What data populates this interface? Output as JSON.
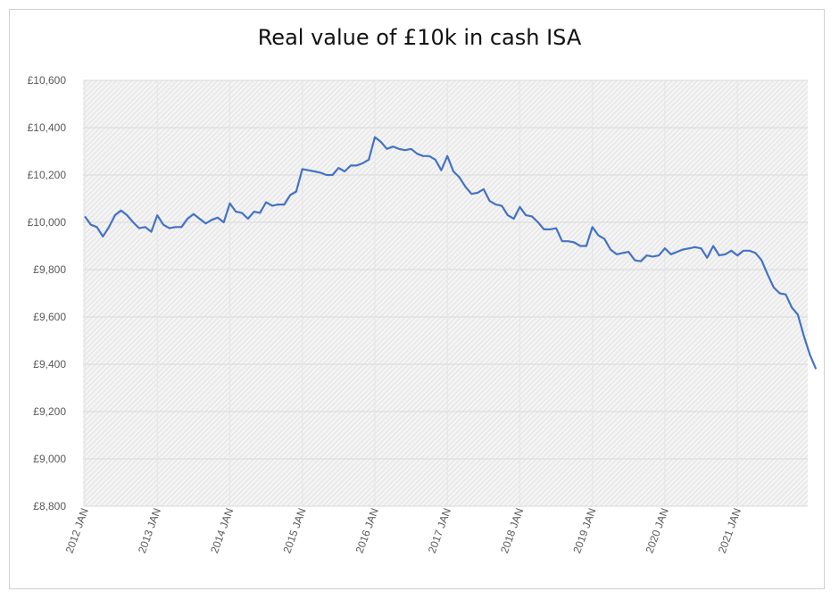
{
  "chart_data": {
    "type": "line",
    "title": "Real value of £10k in cash ISA",
    "xlabel": "",
    "ylabel": "",
    "ylim": [
      8800,
      10600
    ],
    "yticks": [
      8800,
      9000,
      9200,
      9400,
      9600,
      9800,
      10000,
      10200,
      10400,
      10600
    ],
    "ytick_labels": [
      "£8,800",
      "£9,000",
      "£9,200",
      "£9,400",
      "£9,600",
      "£9,800",
      "£10,000",
      "£10,200",
      "£10,400",
      "£10,600"
    ],
    "xtick_labels": [
      "2012 JAN",
      "2013 JAN",
      "2014 JAN",
      "2015 JAN",
      "2016 JAN",
      "2017 JAN",
      "2018 JAN",
      "2019 JAN",
      "2020 JAN",
      "2021 JAN"
    ],
    "x_start": "2012 JAN",
    "x_step": "month",
    "grid": true,
    "legend": "none",
    "series": [
      {
        "name": "Real value",
        "color": "#4472C4",
        "values": [
          10025,
          9990,
          9980,
          9940,
          9980,
          10030,
          10050,
          10030,
          10000,
          9975,
          9980,
          9960,
          10030,
          9990,
          9975,
          9980,
          9980,
          10015,
          10035,
          10015,
          9995,
          10010,
          10020,
          10000,
          10080,
          10045,
          10040,
          10015,
          10045,
          10040,
          10085,
          10070,
          10075,
          10075,
          10115,
          10130,
          10225,
          10220,
          10215,
          10210,
          10200,
          10200,
          10230,
          10215,
          10240,
          10240,
          10250,
          10265,
          10360,
          10340,
          10310,
          10320,
          10310,
          10305,
          10310,
          10290,
          10280,
          10280,
          10265,
          10220,
          10280,
          10215,
          10190,
          10150,
          10120,
          10125,
          10140,
          10090,
          10075,
          10070,
          10030,
          10015,
          10065,
          10030,
          10025,
          10000,
          9970,
          9970,
          9975,
          9920,
          9920,
          9915,
          9900,
          9900,
          9980,
          9945,
          9930,
          9885,
          9865,
          9870,
          9875,
          9840,
          9835,
          9860,
          9855,
          9860,
          9890,
          9865,
          9875,
          9885,
          9890,
          9895,
          9890,
          9850,
          9900,
          9860,
          9865,
          9880,
          9860,
          9880,
          9880,
          9870,
          9840,
          9780,
          9725,
          9700,
          9695,
          9640,
          9610,
          9520,
          9440,
          9380
        ]
      }
    ]
  }
}
